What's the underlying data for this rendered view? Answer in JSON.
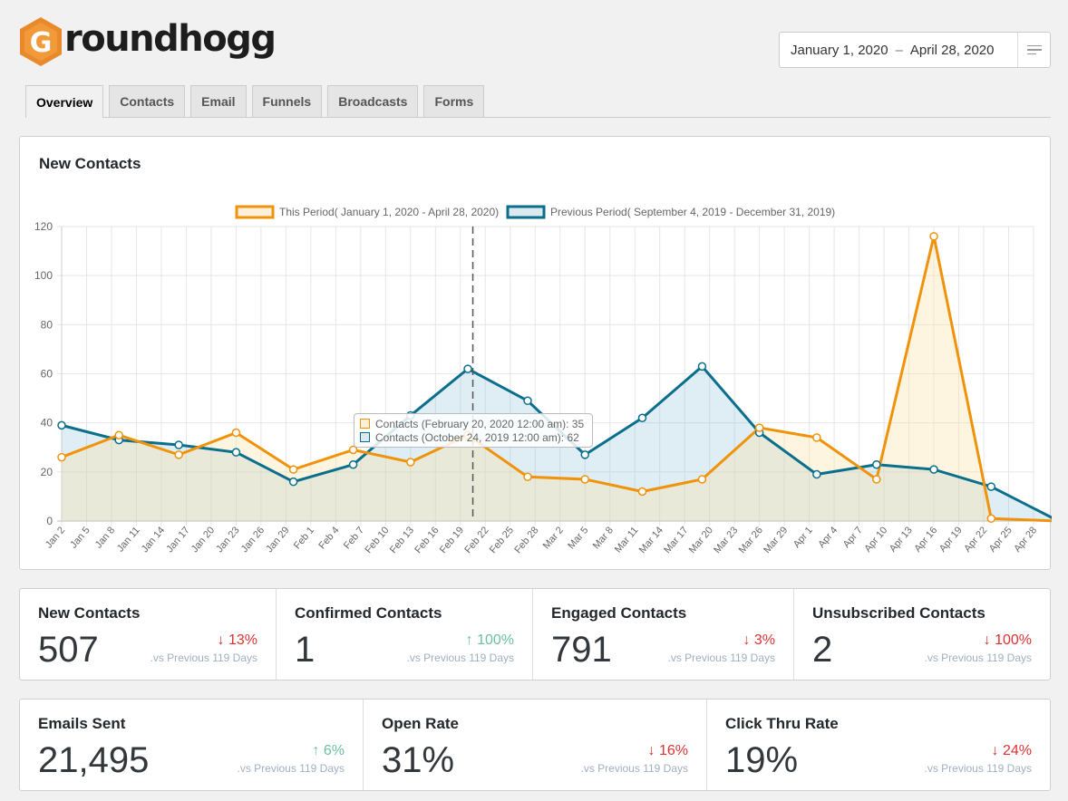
{
  "brand": {
    "name": "roundhogg",
    "logo_letter": "G",
    "color": "#e8892b"
  },
  "date_range": {
    "start": "January 1, 2020",
    "separator": "–",
    "end": "April 28, 2020"
  },
  "tabs": [
    {
      "label": "Overview",
      "active": true
    },
    {
      "label": "Contacts",
      "active": false
    },
    {
      "label": "Email",
      "active": false
    },
    {
      "label": "Funnels",
      "active": false
    },
    {
      "label": "Broadcasts",
      "active": false
    },
    {
      "label": "Forms",
      "active": false
    }
  ],
  "chart_panel": {
    "title": "New Contacts"
  },
  "chart_data": {
    "type": "line",
    "title": "New Contacts",
    "ylim": [
      0,
      120
    ],
    "yticks": [
      0,
      20,
      40,
      60,
      80,
      100,
      120
    ],
    "grid": true,
    "legend_position": "top",
    "x_tick_labels": [
      "Jan 2",
      "Jan 5",
      "Jan 8",
      "Jan 11",
      "Jan 14",
      "Jan 17",
      "Jan 20",
      "Jan 23",
      "Jan 26",
      "Jan 29",
      "Feb 1",
      "Feb 4",
      "Feb 7",
      "Feb 10",
      "Feb 13",
      "Feb 16",
      "Feb 19",
      "Feb 22",
      "Feb 25",
      "Feb 28",
      "Mar 2",
      "Mar 5",
      "Mar 8",
      "Mar 11",
      "Mar 14",
      "Mar 17",
      "Mar 20",
      "Mar 23",
      "Mar 26",
      "Mar 29",
      "Apr 1",
      "Apr 4",
      "Apr 7",
      "Apr 10",
      "Apr 13",
      "Apr 16",
      "Apr 19",
      "Apr 22",
      "Apr 25",
      "Apr 28"
    ],
    "hover_index": 17,
    "series": [
      {
        "name": "This Period( January 1, 2020 - April 28, 2020)",
        "color": "#f0930a",
        "fill": "rgba(252,225,170,0.35)",
        "point_tick_indices": [
          0,
          2.3,
          4.7,
          7,
          9.3,
          11.7,
          14,
          16.3,
          18.7,
          21,
          23.3,
          25.7,
          28,
          30.3,
          32.7,
          35,
          37.3,
          40
        ],
        "values": [
          26,
          35,
          27,
          36,
          21,
          29,
          24,
          35,
          18,
          17,
          12,
          17,
          38,
          34,
          17,
          116,
          1,
          0
        ]
      },
      {
        "name": "Previous Period( September 4, 2019 - December 31, 2019)",
        "color": "#0a6f8c",
        "fill": "rgba(140,190,215,0.28)",
        "point_tick_indices": [
          0,
          2.3,
          4.7,
          7,
          9.3,
          11.7,
          14,
          16.3,
          18.7,
          21,
          23.3,
          25.7,
          28,
          30.3,
          32.7,
          35,
          37.3,
          40
        ],
        "values": [
          39,
          33,
          31,
          28,
          16,
          23,
          43,
          62,
          49,
          27,
          42,
          63,
          36,
          19,
          23,
          21,
          14,
          0
        ]
      }
    ]
  },
  "tooltip": {
    "line1": "Contacts (February 20, 2020 12:00 am): 35",
    "line2": "Contacts (October 24, 2019 12:00 am): 62"
  },
  "stats_row1": [
    {
      "title": "New Contacts",
      "value": "507",
      "direction": "down",
      "change": "13%",
      "vs": ".vs Previous 119 Days"
    },
    {
      "title": "Confirmed Contacts",
      "value": "1",
      "direction": "up",
      "change": "100%",
      "vs": ".vs Previous 119 Days"
    },
    {
      "title": "Engaged Contacts",
      "value": "791",
      "direction": "down",
      "change": "3%",
      "vs": ".vs Previous 119 Days"
    },
    {
      "title": "Unsubscribed Contacts",
      "value": "2",
      "direction": "down",
      "change": "100%",
      "vs": ".vs Previous 119 Days"
    }
  ],
  "stats_row2": [
    {
      "title": "Emails Sent",
      "value": "21,495",
      "direction": "up",
      "change": "6%",
      "vs": ".vs Previous 119 Days"
    },
    {
      "title": "Open Rate",
      "value": "31%",
      "direction": "down",
      "change": "16%",
      "vs": ".vs Previous 119 Days"
    },
    {
      "title": "Click Thru Rate",
      "value": "19%",
      "direction": "down",
      "change": "24%",
      "vs": ".vs Previous 119 Days"
    }
  ],
  "arrows": {
    "up": "↑",
    "down": "↓"
  }
}
